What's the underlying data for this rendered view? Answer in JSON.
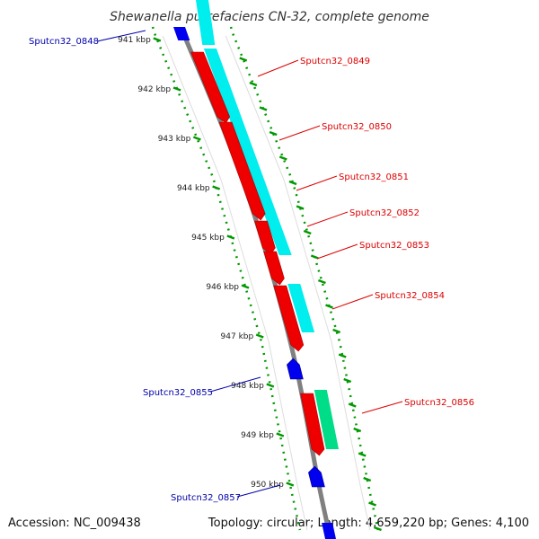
{
  "title": "Shewanella putrefaciens CN-32, complete genome",
  "accession": "Accession: NC_009438",
  "summary": "Topology: circular; Length: 4,659,220 bp; Genes: 4,100",
  "colors": {
    "backbone": "#808080",
    "ruler": "#009900",
    "cds_forward": "#ee0000",
    "cds_reverse": "#0000ee",
    "cog_cyan": "#00eeee",
    "cog_green": "#00dd88",
    "label_forward": "#dd0000",
    "label_reverse": "#0000aa"
  },
  "ticks": [
    {
      "label": "941 kbp"
    },
    {
      "label": "942 kbp"
    },
    {
      "label": "943 kbp"
    },
    {
      "label": "944 kbp"
    },
    {
      "label": "945 kbp"
    },
    {
      "label": "946 kbp"
    },
    {
      "label": "947 kbp"
    },
    {
      "label": "948 kbp"
    },
    {
      "label": "949 kbp"
    },
    {
      "label": "950 kbp"
    }
  ],
  "genes": [
    {
      "name": "Sputcn32_0848",
      "strand": "reverse"
    },
    {
      "name": "Sputcn32_0849",
      "strand": "forward"
    },
    {
      "name": "Sputcn32_0850",
      "strand": "forward"
    },
    {
      "name": "Sputcn32_0851",
      "strand": "forward"
    },
    {
      "name": "Sputcn32_0852",
      "strand": "forward"
    },
    {
      "name": "Sputcn32_0853",
      "strand": "forward"
    },
    {
      "name": "Sputcn32_0854",
      "strand": "forward"
    },
    {
      "name": "Sputcn32_0855",
      "strand": "reverse"
    },
    {
      "name": "Sputcn32_0856",
      "strand": "forward"
    },
    {
      "name": "Sputcn32_0857",
      "strand": "reverse"
    }
  ]
}
